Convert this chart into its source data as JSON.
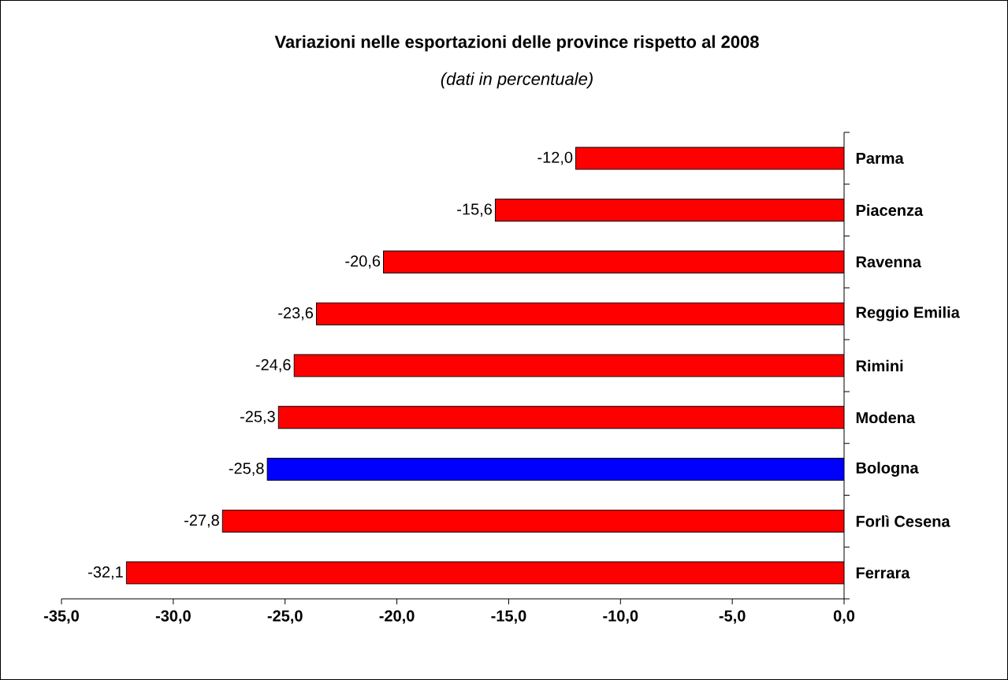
{
  "chart_data": {
    "type": "bar",
    "orientation": "horizontal",
    "title": "Variazioni nelle esportazioni delle province rispetto al 2008",
    "subtitle": "(dati in percentuale)",
    "categories": [
      "Parma",
      "Piacenza",
      "Ravenna",
      "Reggio Emilia",
      "Rimini",
      "Modena",
      "Bologna",
      "Forlì Cesena",
      "Ferrara"
    ],
    "values": [
      -12.0,
      -15.6,
      -20.6,
      -23.6,
      -24.6,
      -25.3,
      -25.8,
      -27.8,
      -32.1
    ],
    "value_labels": [
      "-12,0",
      "-15,6",
      "-20,6",
      "-23,6",
      "-24,6",
      "-25,3",
      "-25,8",
      "-27,8",
      "-32,1"
    ],
    "colors": [
      "#ff0000",
      "#ff0000",
      "#ff0000",
      "#ff0000",
      "#ff0000",
      "#ff0000",
      "#0000ff",
      "#ff0000",
      "#ff0000"
    ],
    "xlim": [
      -35,
      0
    ],
    "xticks": [
      {
        "value": -35,
        "label": "-35,0"
      },
      {
        "value": -30,
        "label": "-30,0"
      },
      {
        "value": -25,
        "label": "-25,0"
      },
      {
        "value": -20,
        "label": "-20,0"
      },
      {
        "value": -15,
        "label": "-15,0"
      },
      {
        "value": -10,
        "label": "-10,0"
      },
      {
        "value": -5,
        "label": "-5,0"
      },
      {
        "value": 0,
        "label": "0,0"
      }
    ]
  }
}
